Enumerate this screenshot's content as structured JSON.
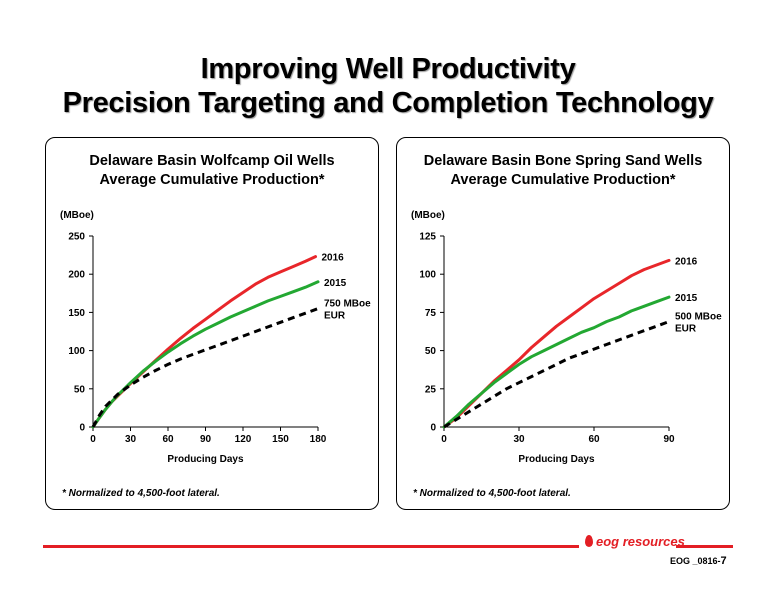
{
  "slide": {
    "title_line1": "Improving Well Productivity",
    "title_line2": "Precision Targeting and Completion Technology",
    "logo_text": "eog resources",
    "doc_id": "EOG _0816-",
    "page_number": "7",
    "rule_color": "#e31e24"
  },
  "chart_data": [
    {
      "type": "line",
      "title_line1": "Delaware Basin Wolfcamp Oil Wells",
      "title_line2": "Average Cumulative Production*",
      "ylabel": "(MBoe)",
      "xlabel": "Producing Days",
      "xlim": [
        0,
        180
      ],
      "ylim": [
        0,
        250
      ],
      "xticks": [
        "0",
        "30",
        "60",
        "90",
        "120",
        "150",
        "180"
      ],
      "yticks": [
        "0",
        "50",
        "100",
        "150",
        "200",
        "250"
      ],
      "footnote": "* Normalized to 4,500-foot lateral.",
      "series": [
        {
          "name": "2016",
          "color": "#e8262a",
          "style": "solid",
          "x": [
            0,
            5,
            10,
            15,
            20,
            25,
            30,
            40,
            50,
            60,
            70,
            80,
            90,
            100,
            110,
            120,
            130,
            140,
            150,
            160,
            170,
            178
          ],
          "y": [
            0,
            12,
            23,
            33,
            41,
            49,
            57,
            72,
            87,
            102,
            116,
            129,
            141,
            153,
            165,
            176,
            187,
            196,
            203,
            210,
            217,
            223
          ]
        },
        {
          "name": "2015",
          "color": "#23a832",
          "style": "solid",
          "x": [
            0,
            5,
            10,
            15,
            20,
            25,
            30,
            40,
            50,
            60,
            70,
            80,
            90,
            100,
            110,
            120,
            130,
            140,
            150,
            160,
            170,
            180
          ],
          "y": [
            0,
            12,
            23,
            33,
            42,
            50,
            58,
            73,
            86,
            98,
            109,
            119,
            128,
            136,
            144,
            151,
            158,
            165,
            171,
            177,
            183,
            190
          ]
        },
        {
          "name": "750 MBoe",
          "name_line2": "EUR",
          "color": "#000000",
          "style": "dashed",
          "x": [
            0,
            5,
            10,
            20,
            30,
            40,
            50,
            60,
            70,
            80,
            90,
            100,
            110,
            120,
            130,
            140,
            150,
            160,
            170,
            180
          ],
          "y": [
            0,
            15,
            27,
            43,
            55,
            65,
            74,
            82,
            89,
            95,
            101,
            107,
            113,
            119,
            125,
            131,
            137,
            143,
            149,
            155
          ]
        }
      ]
    },
    {
      "type": "line",
      "title_line1": "Delaware Basin Bone Spring Sand Wells",
      "title_line2": "Average Cumulative Production*",
      "ylabel": "(MBoe)",
      "xlabel": "Producing Days",
      "xlim": [
        0,
        90
      ],
      "ylim": [
        0,
        125
      ],
      "xticks": [
        "0",
        "30",
        "60",
        "90"
      ],
      "yticks": [
        "0",
        "25",
        "50",
        "75",
        "100",
        "125"
      ],
      "footnote": "* Normalized to 4,500-foot lateral.",
      "series": [
        {
          "name": "2016",
          "color": "#e8262a",
          "style": "solid",
          "x": [
            0,
            5,
            10,
            15,
            20,
            25,
            30,
            35,
            40,
            45,
            50,
            55,
            60,
            65,
            70,
            75,
            80,
            85,
            90
          ],
          "y": [
            0,
            6,
            14,
            22,
            30,
            37,
            44,
            52,
            59,
            66,
            72,
            78,
            84,
            89,
            94,
            99,
            103,
            106,
            109
          ]
        },
        {
          "name": "2015",
          "color": "#23a832",
          "style": "solid",
          "x": [
            0,
            5,
            10,
            15,
            20,
            25,
            30,
            35,
            40,
            45,
            50,
            55,
            60,
            65,
            70,
            75,
            80,
            85,
            90
          ],
          "y": [
            0,
            7,
            15,
            22,
            29,
            35,
            41,
            46,
            50,
            54,
            58,
            62,
            65,
            69,
            72,
            76,
            79,
            82,
            85
          ]
        },
        {
          "name": "500 MBoe",
          "name_line2": "EUR",
          "color": "#000000",
          "style": "dashed",
          "x": [
            0,
            5,
            10,
            15,
            20,
            25,
            30,
            35,
            40,
            45,
            50,
            55,
            60,
            65,
            70,
            75,
            80,
            85,
            90
          ],
          "y": [
            0,
            5,
            10,
            15,
            20,
            25,
            29,
            33,
            37,
            41,
            45,
            48,
            51,
            54,
            57,
            60,
            63,
            66,
            69
          ]
        }
      ]
    }
  ]
}
